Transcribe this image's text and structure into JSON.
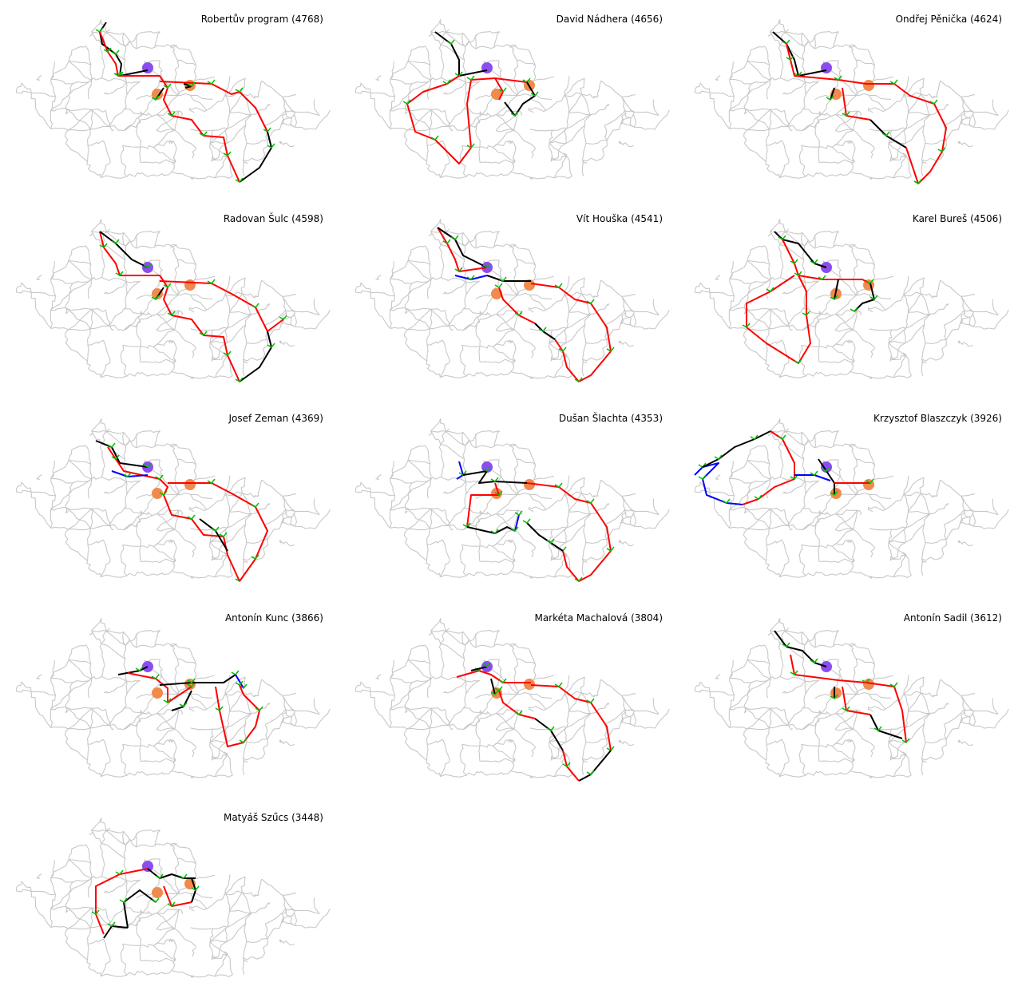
{
  "panels": [
    {
      "name": "Robertův program",
      "score": "4768",
      "title": "Robertův program (4768)"
    },
    {
      "name": "David Nádhera",
      "score": "4656",
      "title": "David Nádhera (4656)"
    },
    {
      "name": "Ondřej Pěnička",
      "score": "4624",
      "title": "Ondřej Pěnička (4624)"
    },
    {
      "name": "Radovan Šulc",
      "score": "4598",
      "title": "Radovan Šulc (4598)"
    },
    {
      "name": "Vít Houška",
      "score": "4541",
      "title": "Vít Houška (4541)"
    },
    {
      "name": "Karel Bureš",
      "score": "4506",
      "title": "Karel Bureš (4506)"
    },
    {
      "name": "Josef Zeman",
      "score": "4369",
      "title": "Josef Zeman (4369)"
    },
    {
      "name": "Dušan Šlachta",
      "score": "4353",
      "title": "Dušan Šlachta (4353)"
    },
    {
      "name": "Krzysztof Blaszczyk",
      "score": "3926",
      "title": "Krzysztof Blaszczyk (3926)"
    },
    {
      "name": "Antonín Kunc",
      "score": "3866",
      "title": "Antonín Kunc (3866)"
    },
    {
      "name": "Markéta Machalová",
      "score": "3804",
      "title": "Markéta Machalová (3804)"
    },
    {
      "name": "Antonín Sadil",
      "score": "3612",
      "title": "Antonín Sadil (3612)"
    },
    {
      "name": "Matyáš Szűcs",
      "score": "3448",
      "title": "Matyáš Szűcs (3448)"
    }
  ],
  "colors": {
    "network": "#c8c8c8",
    "route_red": "#ff0000",
    "route_black": "#000000",
    "route_blue": "#0000ff",
    "stop_marks": "#00c000",
    "start_marker": "#8a4df0",
    "target_marker": "#f08a4d"
  }
}
